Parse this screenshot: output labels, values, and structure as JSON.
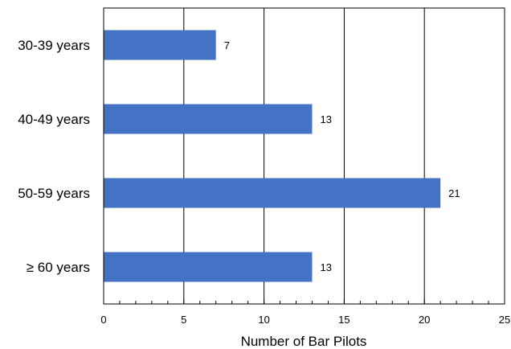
{
  "chart_data": {
    "type": "bar",
    "orientation": "horizontal",
    "categories": [
      "30-39 years",
      "40-49 years",
      "50-59 years",
      "≥ 60 years"
    ],
    "values": [
      7,
      13,
      21,
      13
    ],
    "data_labels": [
      "7",
      "13",
      "21",
      "13"
    ],
    "title": "",
    "xlabel": "Number of Bar Pilots",
    "ylabel": "",
    "xlim": [
      0,
      25
    ],
    "xticks": [
      0,
      5,
      10,
      15,
      20,
      25
    ],
    "xtick_labels": [
      "0",
      "5",
      "10",
      "15",
      "20",
      "25"
    ],
    "grid": "vertical major gridlines",
    "legend": "none",
    "bar_color": "#4472C4"
  }
}
